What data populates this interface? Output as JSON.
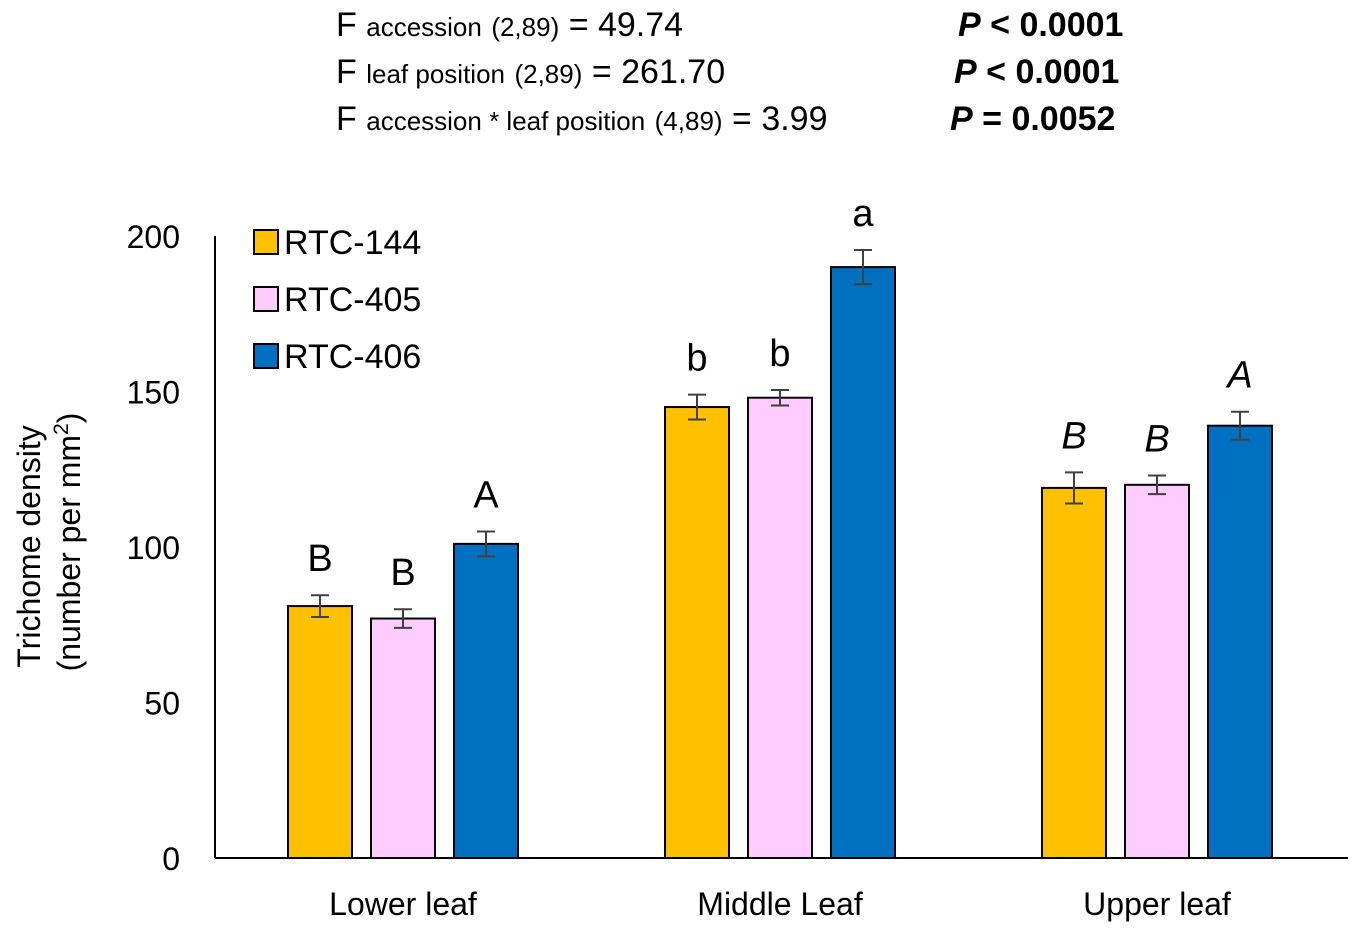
{
  "stats": [
    {
      "f": "F",
      "term": "accession",
      "df": "(2,89)",
      "eq": "= 49.74",
      "p_symbol": "P",
      "p_text": "< 0.0001"
    },
    {
      "f": "F",
      "term": "leaf position",
      "df": "(2,89)",
      "eq": "= 261.70",
      "p_symbol": "P",
      "p_text": "< 0.0001"
    },
    {
      "f": "F",
      "term": "accession * leaf position",
      "df": "(4,89)",
      "eq": "= 3.99",
      "p_symbol": "P",
      "p_text": "= 0.0052"
    }
  ],
  "chart_data": {
    "type": "bar",
    "title": "",
    "xlabel": "",
    "ylabel_line1": "Trichome density",
    "ylabel_line2_prefix": "(number per mm",
    "ylabel_sup": "2",
    "ylabel_line2_suffix": ")",
    "ylim": [
      0,
      200
    ],
    "yticks": [
      0,
      50,
      100,
      150,
      200
    ],
    "categories": [
      "Lower leaf",
      "Middle Leaf",
      "Upper leaf"
    ],
    "legend_position": "top-left",
    "series": [
      {
        "name": "RTC-144",
        "color": "#FFC000",
        "values": [
          81,
          145,
          119
        ],
        "errors": [
          3.5,
          4,
          5
        ],
        "letters": [
          "B",
          "b",
          "B"
        ]
      },
      {
        "name": "RTC-405",
        "color": "#FFCCFF",
        "values": [
          77,
          148,
          120
        ],
        "errors": [
          3,
          2.5,
          3
        ],
        "letters": [
          "B",
          "b",
          "B"
        ]
      },
      {
        "name": "RTC-406",
        "color": "#0070C0",
        "values": [
          101,
          190,
          139
        ],
        "errors": [
          4,
          5.5,
          4.5
        ],
        "letters": [
          "A",
          "a",
          "A"
        ]
      }
    ],
    "letter_italic": [
      false,
      false,
      true
    ]
  }
}
